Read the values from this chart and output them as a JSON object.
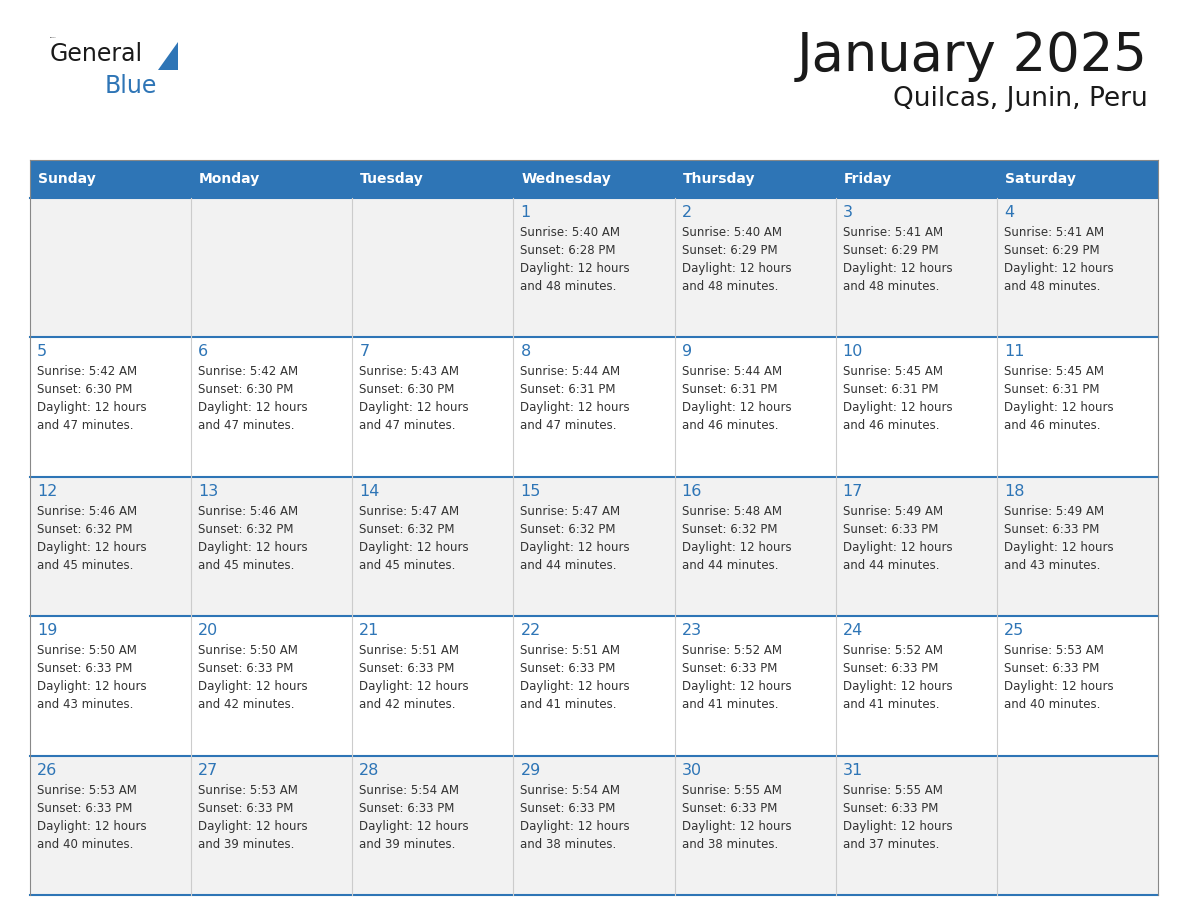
{
  "title": "January 2025",
  "subtitle": "Quilcas, Junin, Peru",
  "header_bg": "#2E75B6",
  "header_fg": "#FFFFFF",
  "cell_bg": "#FFFFFF",
  "cell_alt_bg": "#F2F2F2",
  "border_color": "#2E75B6",
  "row_line_color": "#2E75B6",
  "day_num_color": "#2E75B6",
  "info_color": "#333333",
  "days_of_week": [
    "Sunday",
    "Monday",
    "Tuesday",
    "Wednesday",
    "Thursday",
    "Friday",
    "Saturday"
  ],
  "weeks": [
    [
      {
        "day": "",
        "info": ""
      },
      {
        "day": "",
        "info": ""
      },
      {
        "day": "",
        "info": ""
      },
      {
        "day": "1",
        "info": "Sunrise: 5:40 AM\nSunset: 6:28 PM\nDaylight: 12 hours\nand 48 minutes."
      },
      {
        "day": "2",
        "info": "Sunrise: 5:40 AM\nSunset: 6:29 PM\nDaylight: 12 hours\nand 48 minutes."
      },
      {
        "day": "3",
        "info": "Sunrise: 5:41 AM\nSunset: 6:29 PM\nDaylight: 12 hours\nand 48 minutes."
      },
      {
        "day": "4",
        "info": "Sunrise: 5:41 AM\nSunset: 6:29 PM\nDaylight: 12 hours\nand 48 minutes."
      }
    ],
    [
      {
        "day": "5",
        "info": "Sunrise: 5:42 AM\nSunset: 6:30 PM\nDaylight: 12 hours\nand 47 minutes."
      },
      {
        "day": "6",
        "info": "Sunrise: 5:42 AM\nSunset: 6:30 PM\nDaylight: 12 hours\nand 47 minutes."
      },
      {
        "day": "7",
        "info": "Sunrise: 5:43 AM\nSunset: 6:30 PM\nDaylight: 12 hours\nand 47 minutes."
      },
      {
        "day": "8",
        "info": "Sunrise: 5:44 AM\nSunset: 6:31 PM\nDaylight: 12 hours\nand 47 minutes."
      },
      {
        "day": "9",
        "info": "Sunrise: 5:44 AM\nSunset: 6:31 PM\nDaylight: 12 hours\nand 46 minutes."
      },
      {
        "day": "10",
        "info": "Sunrise: 5:45 AM\nSunset: 6:31 PM\nDaylight: 12 hours\nand 46 minutes."
      },
      {
        "day": "11",
        "info": "Sunrise: 5:45 AM\nSunset: 6:31 PM\nDaylight: 12 hours\nand 46 minutes."
      }
    ],
    [
      {
        "day": "12",
        "info": "Sunrise: 5:46 AM\nSunset: 6:32 PM\nDaylight: 12 hours\nand 45 minutes."
      },
      {
        "day": "13",
        "info": "Sunrise: 5:46 AM\nSunset: 6:32 PM\nDaylight: 12 hours\nand 45 minutes."
      },
      {
        "day": "14",
        "info": "Sunrise: 5:47 AM\nSunset: 6:32 PM\nDaylight: 12 hours\nand 45 minutes."
      },
      {
        "day": "15",
        "info": "Sunrise: 5:47 AM\nSunset: 6:32 PM\nDaylight: 12 hours\nand 44 minutes."
      },
      {
        "day": "16",
        "info": "Sunrise: 5:48 AM\nSunset: 6:32 PM\nDaylight: 12 hours\nand 44 minutes."
      },
      {
        "day": "17",
        "info": "Sunrise: 5:49 AM\nSunset: 6:33 PM\nDaylight: 12 hours\nand 44 minutes."
      },
      {
        "day": "18",
        "info": "Sunrise: 5:49 AM\nSunset: 6:33 PM\nDaylight: 12 hours\nand 43 minutes."
      }
    ],
    [
      {
        "day": "19",
        "info": "Sunrise: 5:50 AM\nSunset: 6:33 PM\nDaylight: 12 hours\nand 43 minutes."
      },
      {
        "day": "20",
        "info": "Sunrise: 5:50 AM\nSunset: 6:33 PM\nDaylight: 12 hours\nand 42 minutes."
      },
      {
        "day": "21",
        "info": "Sunrise: 5:51 AM\nSunset: 6:33 PM\nDaylight: 12 hours\nand 42 minutes."
      },
      {
        "day": "22",
        "info": "Sunrise: 5:51 AM\nSunset: 6:33 PM\nDaylight: 12 hours\nand 41 minutes."
      },
      {
        "day": "23",
        "info": "Sunrise: 5:52 AM\nSunset: 6:33 PM\nDaylight: 12 hours\nand 41 minutes."
      },
      {
        "day": "24",
        "info": "Sunrise: 5:52 AM\nSunset: 6:33 PM\nDaylight: 12 hours\nand 41 minutes."
      },
      {
        "day": "25",
        "info": "Sunrise: 5:53 AM\nSunset: 6:33 PM\nDaylight: 12 hours\nand 40 minutes."
      }
    ],
    [
      {
        "day": "26",
        "info": "Sunrise: 5:53 AM\nSunset: 6:33 PM\nDaylight: 12 hours\nand 40 minutes."
      },
      {
        "day": "27",
        "info": "Sunrise: 5:53 AM\nSunset: 6:33 PM\nDaylight: 12 hours\nand 39 minutes."
      },
      {
        "day": "28",
        "info": "Sunrise: 5:54 AM\nSunset: 6:33 PM\nDaylight: 12 hours\nand 39 minutes."
      },
      {
        "day": "29",
        "info": "Sunrise: 5:54 AM\nSunset: 6:33 PM\nDaylight: 12 hours\nand 38 minutes."
      },
      {
        "day": "30",
        "info": "Sunrise: 5:55 AM\nSunset: 6:33 PM\nDaylight: 12 hours\nand 38 minutes."
      },
      {
        "day": "31",
        "info": "Sunrise: 5:55 AM\nSunset: 6:33 PM\nDaylight: 12 hours\nand 37 minutes."
      },
      {
        "day": "",
        "info": ""
      }
    ]
  ],
  "logo_general_color": "#1a1a1a",
  "logo_blue_color": "#2E75B6",
  "logo_triangle_color": "#2E75B6",
  "title_color": "#1a1a1a",
  "subtitle_color": "#1a1a1a"
}
